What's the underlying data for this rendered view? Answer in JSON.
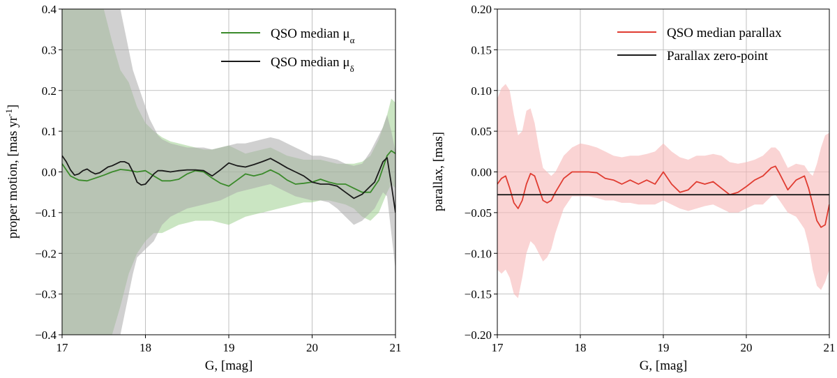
{
  "chart_data": [
    {
      "type": "line",
      "xlabel": "G, [mag]",
      "ylabel": "proper motion, [mas yr",
      "ylabel_sup": "-1",
      "ylabel_end": "]",
      "xlim": [
        17,
        21
      ],
      "ylim": [
        -0.4,
        0.4
      ],
      "xticks": [
        17,
        18,
        19,
        20,
        21
      ],
      "xtick_labels": [
        "17",
        "18",
        "19",
        "20",
        "21"
      ],
      "yticks": [
        -0.4,
        -0.3,
        -0.2,
        -0.1,
        0.0,
        0.1,
        0.2,
        0.3,
        0.4
      ],
      "ytick_labels": [
        "−0.4",
        "−0.3",
        "−0.2",
        "−0.1",
        "0.0",
        "0.1",
        "0.2",
        "0.3",
        "0.4"
      ],
      "grid": true,
      "legend_position": "top-right",
      "series": [
        {
          "name": "QSO median μα",
          "legend_main": "QSO median μ",
          "legend_sub": "α",
          "color": "#3a8a2a",
          "band_color": "#9fd08f",
          "x": [
            17.0,
            17.1,
            17.2,
            17.3,
            17.4,
            17.5,
            17.6,
            17.7,
            17.8,
            17.9,
            18.0,
            18.1,
            18.2,
            18.3,
            18.4,
            18.5,
            18.6,
            18.7,
            18.8,
            18.9,
            19.0,
            19.1,
            19.2,
            19.3,
            19.4,
            19.5,
            19.6,
            19.7,
            19.8,
            19.9,
            20.0,
            20.1,
            20.2,
            20.3,
            20.4,
            20.5,
            20.6,
            20.7,
            20.8,
            20.9,
            20.95,
            21.0
          ],
          "y": [
            0.02,
            -0.01,
            -0.02,
            -0.022,
            -0.015,
            -0.008,
            0.0,
            0.006,
            0.004,
            0.0,
            0.003,
            -0.01,
            -0.022,
            -0.022,
            -0.018,
            -0.005,
            0.003,
            0.0,
            -0.015,
            -0.028,
            -0.035,
            -0.02,
            -0.005,
            -0.01,
            -0.005,
            0.005,
            -0.005,
            -0.02,
            -0.03,
            -0.028,
            -0.025,
            -0.018,
            -0.025,
            -0.03,
            -0.03,
            -0.04,
            -0.05,
            -0.05,
            -0.02,
            0.04,
            0.052,
            0.045
          ],
          "upper": [
            0.4,
            0.4,
            0.4,
            0.4,
            0.4,
            0.4,
            0.32,
            0.25,
            0.22,
            0.16,
            0.12,
            0.1,
            0.085,
            0.075,
            0.07,
            0.065,
            0.06,
            0.055,
            0.055,
            0.06,
            0.065,
            0.055,
            0.045,
            0.05,
            0.055,
            0.06,
            0.05,
            0.04,
            0.035,
            0.03,
            0.03,
            0.03,
            0.025,
            0.02,
            0.02,
            0.02,
            0.025,
            0.04,
            0.08,
            0.14,
            0.18,
            0.17
          ],
          "lower": [
            -0.4,
            -0.4,
            -0.4,
            -0.4,
            -0.4,
            -0.4,
            -0.4,
            -0.33,
            -0.25,
            -0.2,
            -0.17,
            -0.15,
            -0.15,
            -0.14,
            -0.13,
            -0.125,
            -0.12,
            -0.12,
            -0.12,
            -0.125,
            -0.13,
            -0.12,
            -0.11,
            -0.105,
            -0.1,
            -0.095,
            -0.09,
            -0.085,
            -0.08,
            -0.075,
            -0.075,
            -0.07,
            -0.07,
            -0.075,
            -0.08,
            -0.09,
            -0.11,
            -0.12,
            -0.1,
            -0.05,
            -0.03,
            -0.04
          ]
        },
        {
          "name": "QSO median μδ",
          "legend_main": "QSO median μ",
          "legend_sub": "δ",
          "color": "#1a1a1a",
          "band_color": "#a9a9a9",
          "x": [
            17.0,
            17.05,
            17.1,
            17.15,
            17.2,
            17.25,
            17.3,
            17.35,
            17.4,
            17.45,
            17.5,
            17.55,
            17.6,
            17.65,
            17.7,
            17.75,
            17.8,
            17.85,
            17.9,
            17.95,
            18.0,
            18.05,
            18.1,
            18.15,
            18.2,
            18.3,
            18.4,
            18.5,
            18.6,
            18.7,
            18.8,
            18.9,
            19.0,
            19.1,
            19.2,
            19.3,
            19.4,
            19.5,
            19.6,
            19.7,
            19.8,
            19.9,
            20.0,
            20.1,
            20.2,
            20.3,
            20.4,
            20.5,
            20.6,
            20.7,
            20.75,
            20.8,
            20.85,
            20.9,
            20.95,
            21.0
          ],
          "y": [
            0.04,
            0.025,
            0.005,
            -0.008,
            -0.005,
            0.003,
            0.007,
            0.0,
            -0.005,
            -0.002,
            0.005,
            0.012,
            0.015,
            0.02,
            0.025,
            0.025,
            0.02,
            0.0,
            -0.025,
            -0.032,
            -0.03,
            -0.018,
            -0.005,
            0.003,
            0.003,
            0.0,
            0.003,
            0.005,
            0.005,
            0.003,
            -0.01,
            0.005,
            0.022,
            0.015,
            0.012,
            0.018,
            0.025,
            0.033,
            0.022,
            0.01,
            0.0,
            -0.01,
            -0.025,
            -0.03,
            -0.03,
            -0.035,
            -0.05,
            -0.065,
            -0.055,
            -0.035,
            -0.025,
            0.0,
            0.025,
            0.035,
            -0.03,
            -0.1
          ],
          "upper": [
            0.4,
            0.4,
            0.4,
            0.4,
            0.4,
            0.4,
            0.4,
            0.4,
            0.4,
            0.4,
            0.4,
            0.4,
            0.4,
            0.4,
            0.4,
            0.35,
            0.3,
            0.25,
            0.22,
            0.19,
            0.16,
            0.13,
            0.11,
            0.09,
            0.08,
            0.07,
            0.065,
            0.06,
            0.06,
            0.06,
            0.055,
            0.06,
            0.065,
            0.07,
            0.07,
            0.075,
            0.08,
            0.085,
            0.08,
            0.07,
            0.06,
            0.05,
            0.04,
            0.04,
            0.035,
            0.03,
            0.02,
            0.015,
            0.02,
            0.05,
            0.07,
            0.09,
            0.11,
            0.14,
            0.1,
            0.05
          ],
          "lower": [
            -0.4,
            -0.4,
            -0.4,
            -0.4,
            -0.4,
            -0.4,
            -0.4,
            -0.4,
            -0.4,
            -0.4,
            -0.4,
            -0.4,
            -0.4,
            -0.4,
            -0.4,
            -0.35,
            -0.3,
            -0.25,
            -0.21,
            -0.2,
            -0.19,
            -0.18,
            -0.17,
            -0.15,
            -0.13,
            -0.11,
            -0.1,
            -0.09,
            -0.085,
            -0.08,
            -0.075,
            -0.07,
            -0.06,
            -0.05,
            -0.045,
            -0.04,
            -0.035,
            -0.03,
            -0.04,
            -0.05,
            -0.06,
            -0.065,
            -0.07,
            -0.07,
            -0.075,
            -0.09,
            -0.11,
            -0.13,
            -0.12,
            -0.1,
            -0.09,
            -0.07,
            -0.05,
            -0.06,
            -0.15,
            -0.24
          ]
        }
      ]
    },
    {
      "type": "line",
      "xlabel": "G, [mag]",
      "ylabel": "parallax, [mas]",
      "xlim": [
        17,
        21
      ],
      "ylim": [
        -0.2,
        0.2
      ],
      "xticks": [
        17,
        18,
        19,
        20,
        21
      ],
      "xtick_labels": [
        "17",
        "18",
        "19",
        "20",
        "21"
      ],
      "yticks": [
        -0.2,
        -0.15,
        -0.1,
        -0.05,
        0.0,
        0.05,
        0.1,
        0.15,
        0.2
      ],
      "ytick_labels": [
        "−0.20",
        "−0.15",
        "−0.10",
        "−0.05",
        "0.00",
        "0.05",
        "0.10",
        "0.15",
        "0.20"
      ],
      "grid": true,
      "legend_position": "top-right",
      "series": [
        {
          "name": "QSO median parallax",
          "color": "#e03c31",
          "band_color": "#f7b8b8",
          "x": [
            17.0,
            17.05,
            17.1,
            17.15,
            17.2,
            17.25,
            17.3,
            17.35,
            17.4,
            17.45,
            17.5,
            17.55,
            17.6,
            17.65,
            17.7,
            17.8,
            17.9,
            18.0,
            18.1,
            18.2,
            18.3,
            18.4,
            18.5,
            18.6,
            18.7,
            18.8,
            18.9,
            19.0,
            19.1,
            19.2,
            19.3,
            19.4,
            19.5,
            19.6,
            19.7,
            19.8,
            19.9,
            20.0,
            20.1,
            20.2,
            20.3,
            20.35,
            20.4,
            20.5,
            20.6,
            20.7,
            20.75,
            20.8,
            20.85,
            20.9,
            20.95,
            21.0
          ],
          "y": [
            -0.015,
            -0.008,
            -0.005,
            -0.02,
            -0.038,
            -0.045,
            -0.035,
            -0.015,
            -0.002,
            -0.005,
            -0.02,
            -0.035,
            -0.038,
            -0.035,
            -0.025,
            -0.008,
            0.0,
            0.0,
            0.0,
            -0.001,
            -0.008,
            -0.01,
            -0.015,
            -0.01,
            -0.015,
            -0.01,
            -0.015,
            0.0,
            -0.015,
            -0.025,
            -0.022,
            -0.012,
            -0.015,
            -0.012,
            -0.02,
            -0.028,
            -0.025,
            -0.018,
            -0.01,
            -0.005,
            0.005,
            0.007,
            -0.002,
            -0.022,
            -0.01,
            -0.005,
            -0.02,
            -0.04,
            -0.06,
            -0.068,
            -0.065,
            -0.04
          ],
          "upper": [
            0.09,
            0.103,
            0.108,
            0.1,
            0.07,
            0.045,
            0.05,
            0.075,
            0.078,
            0.06,
            0.03,
            0.005,
            0.0,
            -0.005,
            0.0,
            0.02,
            0.03,
            0.035,
            0.033,
            0.03,
            0.025,
            0.02,
            0.018,
            0.02,
            0.02,
            0.022,
            0.025,
            0.035,
            0.025,
            0.018,
            0.015,
            0.02,
            0.02,
            0.022,
            0.02,
            0.012,
            0.01,
            0.012,
            0.015,
            0.02,
            0.03,
            0.03,
            0.025,
            0.005,
            0.01,
            0.008,
            0.0,
            -0.005,
            0.01,
            0.03,
            0.045,
            0.048
          ],
          "lower": [
            -0.12,
            -0.125,
            -0.12,
            -0.13,
            -0.15,
            -0.155,
            -0.13,
            -0.1,
            -0.085,
            -0.09,
            -0.1,
            -0.11,
            -0.105,
            -0.095,
            -0.075,
            -0.045,
            -0.03,
            -0.03,
            -0.03,
            -0.032,
            -0.035,
            -0.035,
            -0.038,
            -0.038,
            -0.04,
            -0.04,
            -0.04,
            -0.035,
            -0.04,
            -0.045,
            -0.048,
            -0.045,
            -0.042,
            -0.04,
            -0.045,
            -0.05,
            -0.05,
            -0.045,
            -0.04,
            -0.04,
            -0.03,
            -0.028,
            -0.035,
            -0.05,
            -0.055,
            -0.07,
            -0.09,
            -0.12,
            -0.14,
            -0.145,
            -0.135,
            -0.12
          ]
        },
        {
          "name": "Parallax zero-point",
          "color": "#1a1a1a",
          "value": -0.028
        }
      ]
    }
  ]
}
